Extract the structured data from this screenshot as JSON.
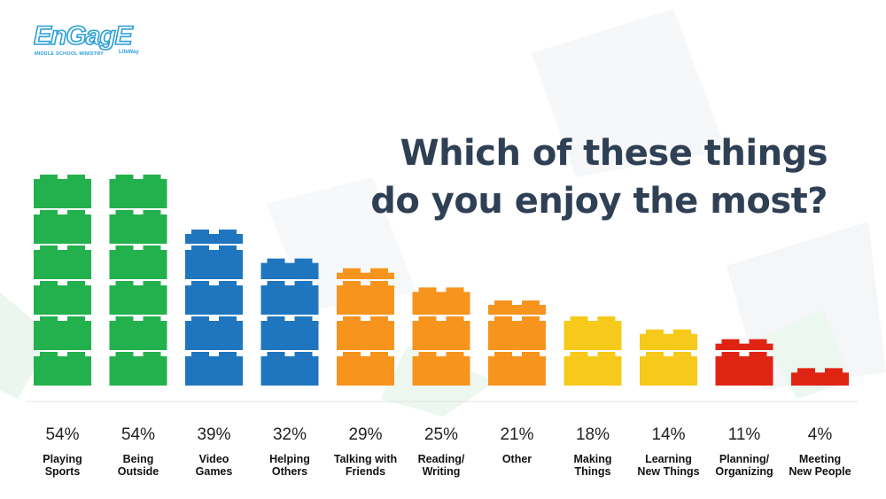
{
  "logo": {
    "main": "EnGagE",
    "sub": "MIDDLE SCHOOL MINISTRY",
    "publisher": "LifeWay"
  },
  "title": {
    "line1": "Which of these things",
    "line2": "do you enjoy the most?"
  },
  "colors": {
    "green": "#23b14d",
    "blue": "#1f76bf",
    "orange": "#f7941d",
    "yellow": "#f6c91a",
    "red": "#e02414",
    "title": "#2f4055"
  },
  "chart_data": {
    "type": "bar",
    "title": "Which of these things do you enjoy the most?",
    "value_suffix": "%",
    "categories": [
      [
        "Playing",
        "Sports"
      ],
      [
        "Being",
        "Outside"
      ],
      [
        "Video",
        "Games"
      ],
      [
        "Helping",
        "Others"
      ],
      [
        "Talking with",
        "Friends"
      ],
      [
        "Reading/",
        "Writing"
      ],
      [
        "Other"
      ],
      [
        "Making",
        "Things"
      ],
      [
        "Learning",
        "New Things"
      ],
      [
        "Planning/",
        "Organizing"
      ],
      [
        "Meeting",
        "New People"
      ]
    ],
    "values": [
      54,
      54,
      39,
      32,
      29,
      25,
      21,
      18,
      14,
      11,
      4
    ],
    "bar_colors": [
      "green",
      "green",
      "blue",
      "blue",
      "orange",
      "orange",
      "orange",
      "yellow",
      "yellow",
      "red",
      "red"
    ],
    "grid": false,
    "legend": "none"
  }
}
